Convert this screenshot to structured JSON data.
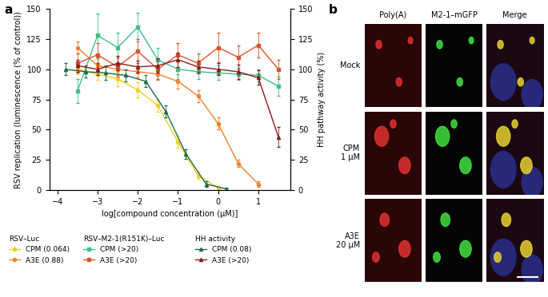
{
  "chart_data": {
    "type": "line",
    "panel_label": "a",
    "x_label": "log[compound concentration (μM)]",
    "y_label": "RSV replication (luminescence (% of control))",
    "y2_label": "HH pathway activity (%)",
    "xlim": [
      -4.2,
      1.8
    ],
    "xticks": [
      {
        "value": -4,
        "label": "−4"
      },
      {
        "value": -3,
        "label": "−3"
      },
      {
        "value": -2,
        "label": "−2"
      },
      {
        "value": -1,
        "label": "−1"
      },
      0,
      1
    ],
    "ylim": [
      0,
      150
    ],
    "yticks": [
      0,
      25,
      50,
      75,
      100,
      125,
      150
    ],
    "y2lim": [
      0,
      150
    ],
    "y2ticks": [
      0,
      25,
      50,
      75,
      100,
      125,
      150
    ],
    "legend": "upper left",
    "groups": [
      {
        "name": "RSV–Luc",
        "series": [
          {
            "name": "CPM (0.064)",
            "color": "#f2cf1d",
            "marker": "o",
            "line_style": "solid",
            "x": [
              -3.5,
              -3,
              -2.5,
              -2,
              -1.5,
              -1,
              -0.5,
              0
            ],
            "values": [
              100,
              96,
              92,
              83,
              70,
              40,
              12,
              2
            ],
            "errors": [
              4,
              5,
              6,
              6,
              5,
              5,
              3,
              1
            ]
          },
          {
            "name": "A3E (0.88)",
            "color": "#f0822a",
            "marker": "o",
            "line_style": "solid",
            "x": [
              -3.5,
              -3,
              -2.5,
              -2,
              -1.5,
              -1,
              -0.5,
              0,
              0.5,
              1
            ],
            "values": [
              118,
              103,
              100,
              98,
              96,
              90,
              78,
              55,
              22,
              5
            ],
            "errors": [
              5,
              6,
              5,
              5,
              5,
              6,
              5,
              5,
              3,
              2
            ]
          }
        ]
      },
      {
        "name": "RSV–M2-1(R151K)–Luc",
        "series": [
          {
            "name": "CPM (>20)",
            "color": "#3fbf8a",
            "marker": "s",
            "line_style": "solid",
            "x": [
              -3.5,
              -3,
              -2.5,
              -2,
              -1.5,
              -1,
              -0.5,
              0,
              0.5,
              1,
              1.5
            ],
            "values": [
              82,
              128,
              118,
              135,
              108,
              100,
              98,
              97,
              96,
              95,
              86
            ],
            "errors": [
              10,
              18,
              12,
              12,
              10,
              8,
              6,
              6,
              5,
              5,
              8
            ]
          },
          {
            "name": "A3E (>20)",
            "color": "#d9542c",
            "marker": "s",
            "line_style": "solid",
            "x": [
              -3.5,
              -3,
              -2.5,
              -2,
              -1.5,
              -1,
              -0.5,
              0,
              0.5,
              1,
              1.5
            ],
            "values": [
              105,
              112,
              102,
              115,
              100,
              112,
              105,
              118,
              110,
              120,
              100
            ],
            "errors": [
              8,
              10,
              8,
              10,
              8,
              10,
              8,
              12,
              10,
              10,
              8
            ]
          }
        ]
      },
      {
        "name": "HH activity",
        "series": [
          {
            "name": "CPM (0.08)",
            "color": "#1e6b4a",
            "marker": "^",
            "line_style": "solid",
            "axis": "y2",
            "x": [
              -3.8,
              -3.3,
              -2.8,
              -2.3,
              -1.8,
              -1.3,
              -0.8,
              -0.3,
              0.2
            ],
            "values": [
              100,
              98,
              97,
              95,
              90,
              65,
              30,
              5,
              1
            ],
            "errors": [
              5,
              5,
              6,
              5,
              5,
              5,
              4,
              2,
              1
            ]
          },
          {
            "name": "A3E (>20)",
            "color": "#8b1a1a",
            "marker": "^",
            "line_style": "solid",
            "axis": "y2",
            "x": [
              -3.5,
              -3,
              -2.5,
              -2,
              -1.5,
              -1,
              -0.5,
              0,
              0.5,
              1,
              1.5
            ],
            "values": [
              103,
              100,
              105,
              102,
              103,
              108,
              102,
              100,
              98,
              93,
              44
            ],
            "errors": [
              5,
              5,
              6,
              5,
              6,
              6,
              5,
              5,
              6,
              6,
              8
            ]
          }
        ]
      }
    ]
  },
  "image_panel": {
    "panel_label": "b",
    "columns": [
      "Poly(A)",
      "M2-1–mGFP",
      "Merge"
    ],
    "rows": [
      "Mock",
      "CPM\n1 μM",
      "A3E\n20 μM"
    ]
  }
}
